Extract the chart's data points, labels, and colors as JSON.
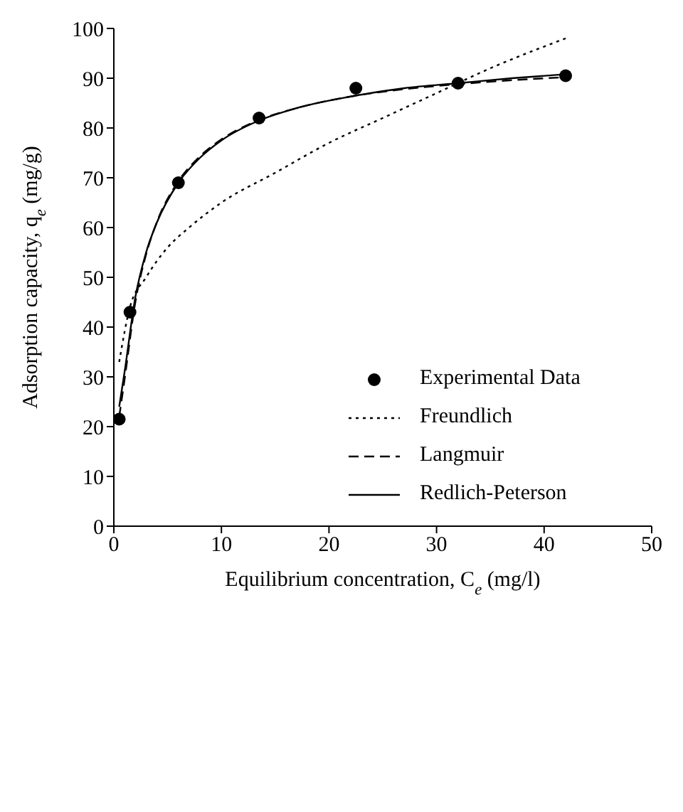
{
  "chart_data": {
    "type": "line",
    "xlabel": "Equilibrium concentration, C$_{e}$ (mg/l)",
    "ylabel": "Adsorption capacity, q$_{e}$ (mg/g)",
    "xlim": [
      0,
      50
    ],
    "xticks": [
      0,
      10,
      20,
      30,
      40,
      50
    ],
    "ylim": [
      0,
      100
    ],
    "yticks": [
      0,
      10,
      20,
      30,
      40,
      50,
      60,
      70,
      80,
      90,
      100
    ],
    "grid": false,
    "legend": "bottom right",
    "series": [
      {
        "name": "Experimental Data",
        "type": "scatter",
        "marker": "circle",
        "color": "#000000",
        "x": [
          0.5,
          1.5,
          6,
          13.5,
          22.5,
          32,
          42
        ],
        "values": [
          21.5,
          43,
          69,
          82,
          88,
          89,
          90.5
        ]
      },
      {
        "name": "Freundlich",
        "marker": "none",
        "line_style": "dotted",
        "color": "#000000",
        "x": [
          0.5,
          1.5,
          3,
          5,
          7,
          10,
          15,
          20,
          25,
          30,
          35,
          42
        ],
        "values": [
          33,
          44,
          50,
          56,
          60,
          65,
          71,
          77,
          82,
          87,
          92,
          98
        ]
      },
      {
        "name": "Langmuir",
        "marker": "none",
        "line_style": "dashed",
        "color": "#000000",
        "x": [
          0.5,
          1,
          2,
          3,
          4,
          6,
          8,
          10,
          13.5,
          17,
          22.5,
          27,
          32,
          37,
          42
        ],
        "values": [
          22,
          29.5,
          45,
          54.6,
          61.1,
          69.3,
          74.3,
          77.7,
          81.6,
          84,
          86.5,
          87.8,
          88.8,
          89.6,
          90.2
        ]
      },
      {
        "name": "Redlich-Peterson",
        "marker": "none",
        "line_style": "solid",
        "color": "#000000",
        "x": [
          0.5,
          1,
          2,
          3,
          4,
          6,
          8,
          10,
          13.5,
          17,
          22.5,
          27,
          32,
          37,
          42
        ],
        "values": [
          24,
          31,
          46,
          55,
          61,
          69,
          74,
          77.5,
          81.5,
          84,
          86.5,
          88,
          89,
          90,
          90.8
        ]
      }
    ]
  }
}
